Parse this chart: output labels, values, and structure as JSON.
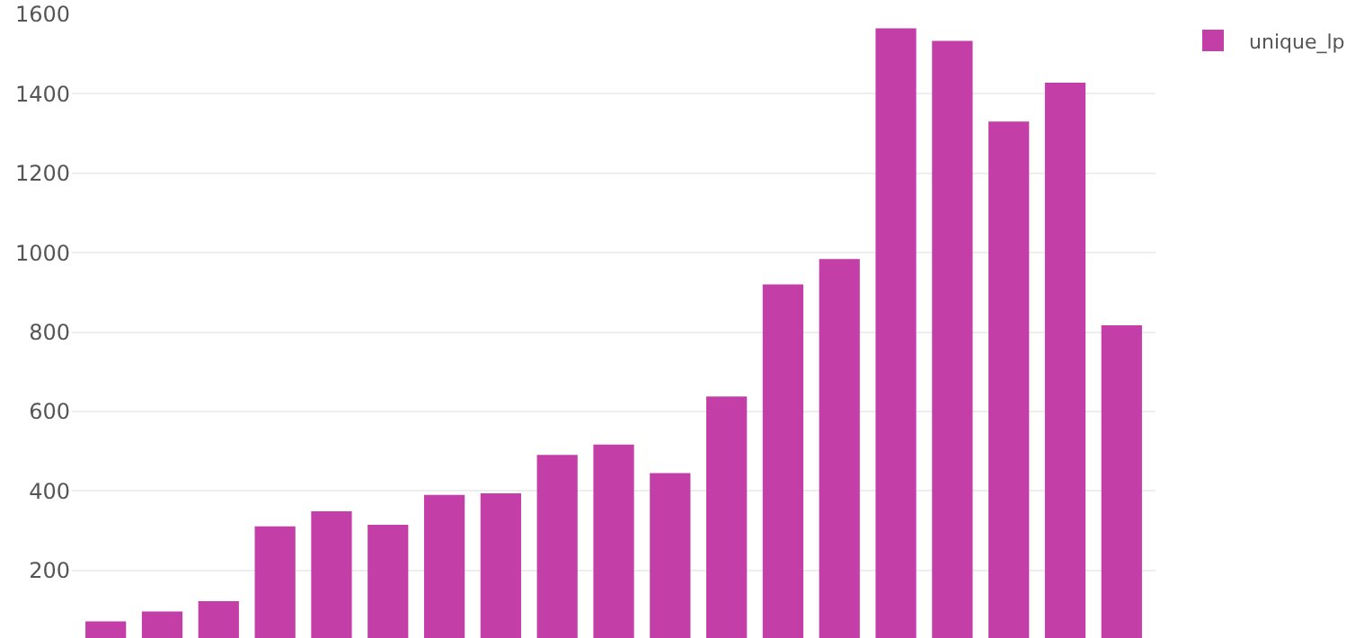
{
  "chart_data": {
    "type": "bar",
    "categories": [
      null,
      null,
      null,
      null,
      null,
      null,
      null,
      null,
      null,
      null,
      null,
      null,
      null,
      null,
      null,
      null,
      null,
      null,
      null
    ],
    "series": [
      {
        "name": "unique_lp",
        "color": "#c43ea8",
        "values": [
          72,
          97,
          123,
          311,
          349,
          315,
          390,
          394,
          491,
          517,
          445,
          638,
          920,
          984,
          1565,
          1533,
          1330,
          1428,
          817
        ]
      }
    ],
    "ylim": [
      30,
      1600
    ],
    "yticks": [
      200,
      400,
      600,
      800,
      1000,
      1200,
      1400,
      1600
    ],
    "grid": "y",
    "legend": "top right",
    "tick_labels": "y"
  }
}
